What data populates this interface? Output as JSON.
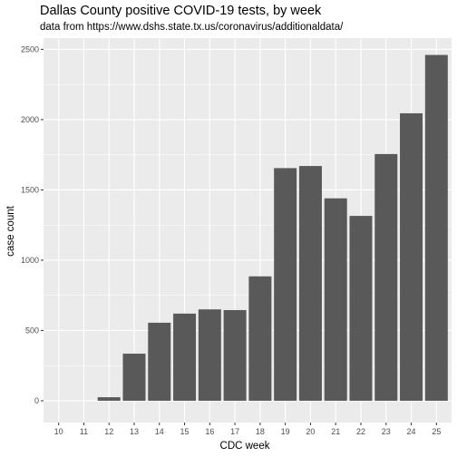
{
  "chart_data": {
    "type": "bar",
    "title": "Dallas County positive COVID-19 tests, by week",
    "subtitle": "data from https://www.dshs.state.tx.us/coronavirus/additionaldata/",
    "xlabel": "CDC week",
    "ylabel": "case count",
    "categories": [
      "10",
      "11",
      "12",
      "13",
      "14",
      "15",
      "16",
      "17",
      "18",
      "19",
      "20",
      "21",
      "22",
      "23",
      "24",
      "25"
    ],
    "values": [
      0,
      0,
      25,
      335,
      555,
      620,
      650,
      645,
      885,
      1655,
      1670,
      1440,
      1315,
      1755,
      2045,
      2460
    ],
    "ylim": [
      -155,
      2580
    ],
    "yticks": [
      0,
      500,
      1000,
      1500,
      2000,
      2500
    ],
    "grid": true,
    "colors": {
      "bar": "#595959",
      "panel": "#ebebeb",
      "grid": "#ffffff"
    }
  }
}
